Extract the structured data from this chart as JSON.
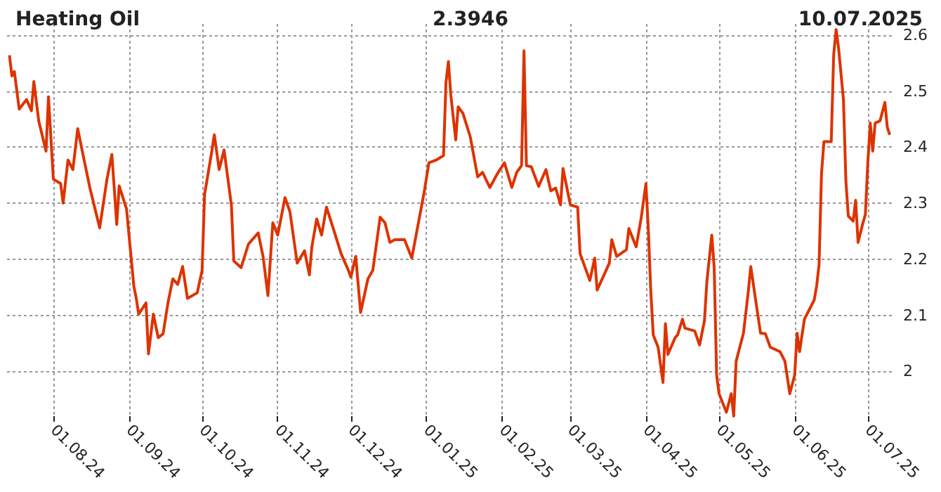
{
  "chart_data": {
    "type": "line",
    "title": "Heating Oil",
    "annotations": [
      "2.3946",
      "10.07.2025"
    ],
    "x": [
      "2024-07-14",
      "2024-07-15",
      "2024-07-16",
      "2024-07-18",
      "2024-07-21",
      "2024-07-23",
      "2024-07-24",
      "2024-07-26",
      "2024-07-29",
      "2024-07-30",
      "2024-08-01",
      "2024-08-04",
      "2024-08-05",
      "2024-08-07",
      "2024-08-09",
      "2024-08-11",
      "2024-08-13",
      "2024-08-16",
      "2024-08-20",
      "2024-08-23",
      "2024-08-25",
      "2024-08-27",
      "2024-08-28",
      "2024-08-31",
      "2024-09-03",
      "2024-09-04",
      "2024-09-05",
      "2024-09-08",
      "2024-09-09",
      "2024-09-11",
      "2024-09-13",
      "2024-09-15",
      "2024-09-17",
      "2024-09-19",
      "2024-09-21",
      "2024-09-23",
      "2024-09-25",
      "2024-09-29",
      "2024-10-01",
      "2024-10-02",
      "2024-10-05",
      "2024-10-06",
      "2024-10-08",
      "2024-10-10",
      "2024-10-13",
      "2024-10-14",
      "2024-10-17",
      "2024-10-20",
      "2024-10-24",
      "2024-10-26",
      "2024-10-28",
      "2024-10-30",
      "2024-11-01",
      "2024-11-04",
      "2024-11-06",
      "2024-11-09",
      "2024-11-12",
      "2024-11-14",
      "2024-11-15",
      "2024-11-17",
      "2024-11-19",
      "2024-11-21",
      "2024-11-24",
      "2024-11-27",
      "2024-11-30",
      "2024-12-01",
      "2024-12-03",
      "2024-12-05",
      "2024-12-08",
      "2024-12-10",
      "2024-12-13",
      "2024-12-15",
      "2024-12-17",
      "2024-12-19",
      "2024-12-23",
      "2024-12-26",
      "2024-12-31",
      "2025-01-02",
      "2025-01-05",
      "2025-01-08",
      "2025-01-09",
      "2025-01-10",
      "2025-01-11",
      "2025-01-13",
      "2025-01-14",
      "2025-01-16",
      "2025-01-19",
      "2025-01-22",
      "2025-01-24",
      "2025-01-27",
      "2025-01-30",
      "2025-02-02",
      "2025-02-05",
      "2025-02-07",
      "2025-02-09",
      "2025-02-10",
      "2025-02-11",
      "2025-02-13",
      "2025-02-16",
      "2025-02-19",
      "2025-02-21",
      "2025-02-23",
      "2025-02-25",
      "2025-02-26",
      "2025-03-01",
      "2025-03-04",
      "2025-03-05",
      "2025-03-09",
      "2025-03-11",
      "2025-03-12",
      "2025-03-17",
      "2025-03-18",
      "2025-03-20",
      "2025-03-24",
      "2025-03-25",
      "2025-03-28",
      "2025-03-30",
      "2025-04-01",
      "2025-04-02",
      "2025-04-03",
      "2025-04-04",
      "2025-04-06",
      "2025-04-08",
      "2025-04-09",
      "2025-04-10",
      "2025-04-13",
      "2025-04-14",
      "2025-04-16",
      "2025-04-17",
      "2025-04-21",
      "2025-04-23",
      "2025-04-25",
      "2025-04-26",
      "2025-04-28",
      "2025-04-29",
      "2025-04-30",
      "2025-05-01",
      "2025-05-04",
      "2025-05-06",
      "2025-05-07",
      "2025-05-08",
      "2025-05-11",
      "2025-05-13",
      "2025-05-14",
      "2025-05-16",
      "2025-05-18",
      "2025-05-20",
      "2025-05-22",
      "2025-05-26",
      "2025-05-28",
      "2025-05-30",
      "2025-06-01",
      "2025-06-02",
      "2025-06-03",
      "2025-06-05",
      "2025-06-09",
      "2025-06-10",
      "2025-06-11",
      "2025-06-12",
      "2025-06-13",
      "2025-06-16",
      "2025-06-17",
      "2025-06-18",
      "2025-06-19",
      "2025-06-21",
      "2025-06-22",
      "2025-06-23",
      "2025-06-25",
      "2025-06-26",
      "2025-06-27",
      "2025-06-29",
      "2025-06-30",
      "2025-07-01",
      "2025-07-02",
      "2025-07-03",
      "2025-07-04",
      "2025-07-06",
      "2025-07-08",
      "2025-07-09",
      "2025-07-10"
    ],
    "series": [
      {
        "color": "#dd3300",
        "values": [
          2.564,
          2.527,
          2.535,
          2.468,
          2.485,
          2.465,
          2.517,
          2.447,
          2.393,
          2.49,
          2.343,
          2.335,
          2.3,
          2.377,
          2.36,
          2.433,
          2.39,
          2.327,
          2.256,
          2.343,
          2.387,
          2.262,
          2.331,
          2.29,
          2.152,
          2.13,
          2.102,
          2.122,
          2.031,
          2.102,
          2.06,
          2.067,
          2.122,
          2.165,
          2.155,
          2.187,
          2.13,
          2.14,
          2.18,
          2.315,
          2.393,
          2.422,
          2.36,
          2.395,
          2.297,
          2.197,
          2.185,
          2.227,
          2.247,
          2.205,
          2.135,
          2.265,
          2.243,
          2.31,
          2.285,
          2.193,
          2.215,
          2.172,
          2.222,
          2.272,
          2.243,
          2.293,
          2.252,
          2.21,
          2.18,
          2.168,
          2.205,
          2.105,
          2.165,
          2.18,
          2.275,
          2.265,
          2.23,
          2.235,
          2.235,
          2.202,
          2.318,
          2.372,
          2.377,
          2.385,
          2.515,
          2.553,
          2.493,
          2.413,
          2.472,
          2.46,
          2.418,
          2.347,
          2.355,
          2.328,
          2.352,
          2.372,
          2.328,
          2.355,
          2.367,
          2.572,
          2.367,
          2.365,
          2.33,
          2.36,
          2.322,
          2.327,
          2.297,
          2.362,
          2.297,
          2.293,
          2.21,
          2.162,
          2.202,
          2.145,
          2.193,
          2.235,
          2.205,
          2.217,
          2.255,
          2.222,
          2.272,
          2.335,
          2.252,
          2.143,
          2.065,
          2.043,
          1.98,
          2.085,
          2.03,
          2.06,
          2.065,
          2.093,
          2.077,
          2.072,
          2.047,
          2.09,
          2.16,
          2.243,
          2.185,
          1.993,
          1.96,
          1.927,
          1.96,
          1.92,
          2.018,
          2.068,
          2.143,
          2.187,
          2.127,
          2.068,
          2.067,
          2.043,
          2.035,
          2.018,
          1.96,
          1.993,
          2.068,
          2.035,
          2.093,
          2.127,
          2.152,
          2.19,
          2.352,
          2.41,
          2.41,
          2.565,
          2.61,
          2.577,
          2.485,
          2.34,
          2.277,
          2.268,
          2.305,
          2.23,
          2.265,
          2.28,
          2.372,
          2.443,
          2.393,
          2.443,
          2.447,
          2.48,
          2.435,
          2.422
        ]
      }
    ],
    "xlim": [
      "2024-07-13",
      "2025-07-12"
    ],
    "xticks": [
      {
        "value": "2024-08-01",
        "label": "01.08.24"
      },
      {
        "value": "2024-09-01",
        "label": "01.09.24"
      },
      {
        "value": "2024-10-01",
        "label": "01.10.24"
      },
      {
        "value": "2024-11-01",
        "label": "01.11.24"
      },
      {
        "value": "2024-12-01",
        "label": "01.12.24"
      },
      {
        "value": "2025-01-01",
        "label": "01.01.25"
      },
      {
        "value": "2025-02-01",
        "label": "01.02.25"
      },
      {
        "value": "2025-03-01",
        "label": "01.03.25"
      },
      {
        "value": "2025-04-01",
        "label": "01.04.25"
      },
      {
        "value": "2025-05-01",
        "label": "01.05.25"
      },
      {
        "value": "2025-06-01",
        "label": "01.06.25"
      },
      {
        "value": "2025-07-01",
        "label": "01.07.25"
      }
    ],
    "ylim": [
      1.92,
      2.62
    ],
    "yticks": [
      2,
      2.1,
      2.2,
      2.3,
      2.4,
      2.5,
      2.6
    ],
    "grid": true,
    "marker": "none",
    "line_style": "solid"
  }
}
